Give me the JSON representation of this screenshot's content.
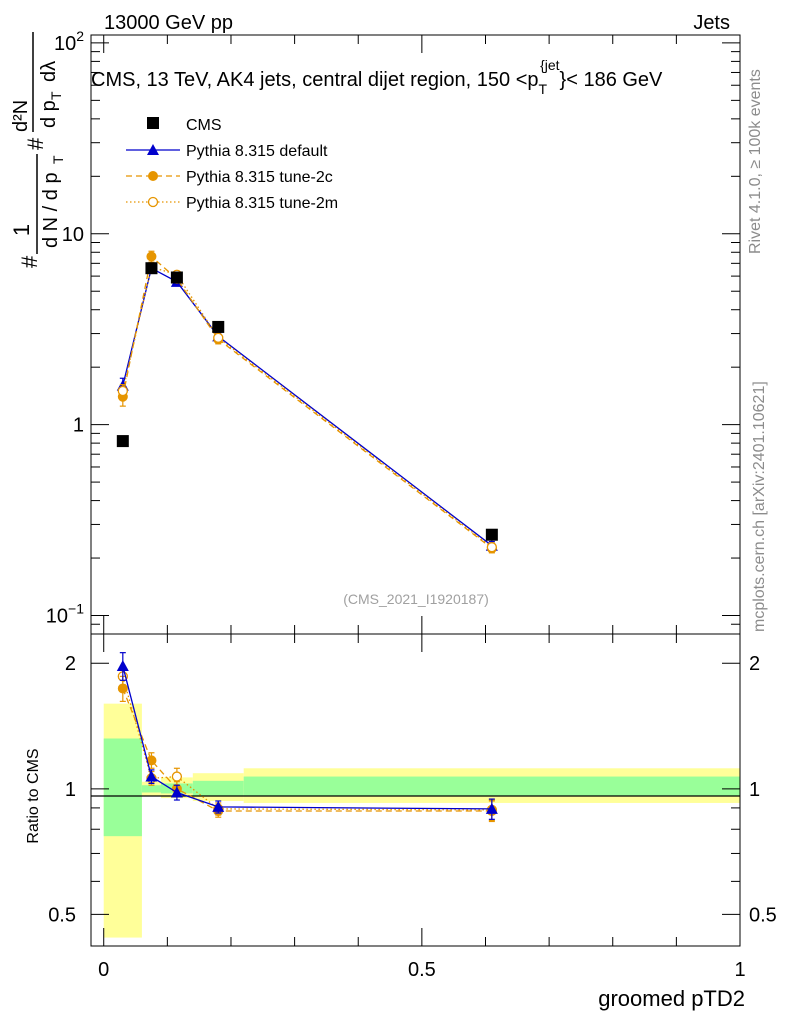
{
  "header": {
    "energy_label": "13000 GeV pp",
    "category_label": "Jets"
  },
  "side_text": {
    "rivet": "Rivet 4.1.0, ≥ 100k events",
    "mcplots": "mcplots.cern.ch [arXiv:2401.10621]"
  },
  "chart_data": [
    {
      "type": "scatter",
      "title": "CMS, 13 TeV, AK4 jets, central dijet region, 150 <p_T^{jet}< 186 GeV",
      "title_parts": {
        "prefix": "CMS, 13 TeV, AK4 jets, central dijet region, 150 <p",
        "sub": "T",
        "sup": "{jet",
        "suffix": "}< 186 GeV"
      },
      "ylabel": "1/N dN/dp_T d^2N/dp_T dλ",
      "ylabel_parts": {
        "hash1": "#",
        "one": "1",
        "dn_dpt": "d N / d p",
        "sub_t": "T",
        "hash2": "#",
        "d2n": "d²N",
        "dpt_dl": "d p",
        "sub_t2": "T",
        "dlambda": "dλ"
      },
      "yscale": "log",
      "ylim": [
        0.08,
        110
      ],
      "xlim": [
        -0.02,
        1.0
      ],
      "ytick_labels": [
        "10⁻¹",
        "1",
        "10",
        "10²"
      ],
      "ytick_parts": [
        {
          "base": "10",
          "exp": "−1"
        },
        {
          "base": "1",
          "exp": ""
        },
        {
          "base": "10",
          "exp": ""
        },
        {
          "base": "10",
          "exp": "2"
        }
      ],
      "ytick_values": [
        0.1,
        1,
        10,
        100
      ],
      "watermark": "(CMS_2021_I1920187)",
      "legend": {
        "position": "top-left",
        "entries": [
          "CMS",
          "Pythia 8.315 default",
          "Pythia 8.315 tune-2c",
          "Pythia 8.315 tune-2m"
        ]
      },
      "series": [
        {
          "name": "CMS",
          "color": "#000000",
          "marker": "square",
          "x": [
            0.03,
            0.075,
            0.115,
            0.18,
            0.61
          ],
          "y": [
            0.82,
            6.6,
            5.9,
            3.25,
            0.265
          ]
        },
        {
          "name": "Pythia 8.315 default",
          "color": "#0000cc",
          "marker": "triangle",
          "line": "solid",
          "x": [
            0.03,
            0.075,
            0.115,
            0.18,
            0.61
          ],
          "y": [
            1.6,
            6.6,
            5.6,
            2.9,
            0.232
          ],
          "err": [
            0.15,
            0.25,
            0.2,
            0.12,
            0.012
          ]
        },
        {
          "name": "Pythia 8.315 tune-2c",
          "color": "#e69500",
          "marker": "circle",
          "line": "dashed",
          "x": [
            0.03,
            0.075,
            0.115,
            0.18,
            0.61
          ],
          "y": [
            1.4,
            7.6,
            5.8,
            2.8,
            0.225
          ],
          "err": [
            0.15,
            0.5,
            0.25,
            0.15,
            0.012
          ]
        },
        {
          "name": "Pythia 8.315 tune-2m",
          "color": "#e69500",
          "marker": "open-circle",
          "line": "dotted",
          "x": [
            0.03,
            0.075,
            0.115,
            0.18,
            0.61
          ],
          "y": [
            1.5,
            6.7,
            6.1,
            2.85,
            0.228
          ],
          "err": [
            0.12,
            0.25,
            0.25,
            0.12,
            0.012
          ]
        }
      ]
    },
    {
      "type": "ratio",
      "xlabel": "groomed pTD2",
      "ylabel": "Ratio to CMS",
      "yscale": "log",
      "ylim": [
        0.42,
        2.35
      ],
      "xlim": [
        -0.02,
        1.0
      ],
      "xtick_labels": [
        "0",
        "0.5",
        "1"
      ],
      "xtick_values": [
        0,
        0.5,
        1
      ],
      "ytick_labels": [
        "0.5",
        "1",
        "2"
      ],
      "ytick_values": [
        0.5,
        1,
        2
      ],
      "bands": {
        "bin_edges": [
          0,
          0.06,
          0.09,
          0.14,
          0.22,
          1.0
        ],
        "inner": [
          [
            0.77,
            1.32
          ],
          [
            0.98,
            1.02
          ],
          [
            0.975,
            1.03
          ],
          [
            0.96,
            1.045
          ],
          [
            0.96,
            1.07
          ]
        ],
        "outer": [
          [
            0.44,
            1.6
          ],
          [
            0.96,
            1.04
          ],
          [
            0.95,
            1.065
          ],
          [
            0.935,
            1.09
          ],
          [
            0.925,
            1.12
          ]
        ],
        "inner_color": "#99ff99",
        "outer_color": "#ffff99"
      },
      "series": [
        {
          "name": "Pythia 8.315 default",
          "color": "#0000cc",
          "marker": "triangle",
          "line": "solid",
          "x": [
            0.03,
            0.075,
            0.115,
            0.18,
            0.61
          ],
          "y": [
            1.97,
            1.07,
            0.98,
            0.905,
            0.895
          ],
          "err": [
            0.15,
            0.04,
            0.04,
            0.03,
            0.05
          ]
        },
        {
          "name": "Pythia 8.315 tune-2c",
          "color": "#e69500",
          "marker": "circle",
          "line": "dashed",
          "x": [
            0.03,
            0.075,
            0.115,
            0.18,
            0.61
          ],
          "y": [
            1.74,
            1.17,
            1.0,
            0.885,
            0.885
          ],
          "err": [
            0.12,
            0.05,
            0.04,
            0.03,
            0.05
          ]
        },
        {
          "name": "Pythia 8.315 tune-2m",
          "color": "#e69500",
          "marker": "open-circle",
          "line": "dotted",
          "x": [
            0.03,
            0.075,
            0.115,
            0.18,
            0.61
          ],
          "y": [
            1.86,
            1.06,
            1.07,
            0.895,
            0.89
          ],
          "err": [
            0.1,
            0.04,
            0.05,
            0.03,
            0.05
          ]
        }
      ]
    }
  ]
}
